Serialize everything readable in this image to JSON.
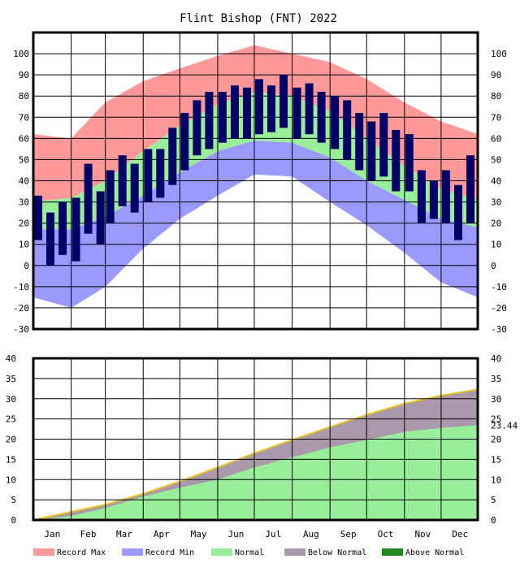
{
  "chart_data": [
    {
      "type": "area",
      "title": "Flint Bishop (FNT) 2022",
      "panel": "temperature",
      "ylim": [
        -30,
        110
      ],
      "yticks": [
        "100",
        "90",
        "80",
        "70",
        "60",
        "50",
        "40",
        "30",
        "20",
        "10",
        "0",
        "-10",
        "-20",
        "-30"
      ],
      "categories": [
        "Jan",
        "Feb",
        "Mar",
        "Apr",
        "May",
        "Jun",
        "Jul",
        "Aug",
        "Sep",
        "Oct",
        "Nov",
        "Dec"
      ],
      "grid": true,
      "series": [
        {
          "name": "Record Max",
          "color": "#ff9999",
          "x": [
            "Jan 1",
            "Feb 1",
            "Mar 1",
            "Apr 1",
            "May 1",
            "Jun 1",
            "Jul 1",
            "Aug 1",
            "Sep 1",
            "Oct 1",
            "Nov 1",
            "Dec 1",
            "Dec 31"
          ],
          "values": [
            62,
            60,
            77,
            87,
            93,
            99,
            104,
            100,
            96,
            88,
            77,
            68,
            62
          ]
        },
        {
          "name": "Record Min",
          "color": "#9999ff",
          "x": [
            "Jan 1",
            "Feb 1",
            "Mar 1",
            "Apr 1",
            "May 1",
            "Jun 1",
            "Jul 1",
            "Aug 1",
            "Sep 1",
            "Oct 1",
            "Nov 1",
            "Dec 1",
            "Dec 31"
          ],
          "values": [
            -15,
            -20,
            -10,
            8,
            22,
            33,
            43,
            42,
            30,
            19,
            6,
            -8,
            -15
          ]
        },
        {
          "name": "Normal",
          "color": "#99ee99",
          "x": [
            "Jan 1",
            "Feb 1",
            "Mar 1",
            "Apr 1",
            "May 1",
            "Jun 1",
            "Jul 1",
            "Aug 1",
            "Sep 1",
            "Oct 1",
            "Nov 1",
            "Dec 1",
            "Dec 31"
          ],
          "high": [
            30,
            32,
            40,
            54,
            66,
            76,
            82,
            80,
            73,
            60,
            47,
            36,
            31
          ],
          "low": [
            17,
            17,
            23,
            33,
            44,
            54,
            59,
            58,
            51,
            40,
            31,
            22,
            18
          ]
        },
        {
          "name": "Observed",
          "color": "#000066",
          "x": [
            "Jan 5",
            "Jan 15",
            "Jan 25",
            "Feb 5",
            "Feb 15",
            "Feb 25",
            "Mar 5",
            "Mar 15",
            "Mar 25",
            "Apr 5",
            "Apr 15",
            "Apr 25",
            "May 5",
            "May 15",
            "May 25",
            "Jun 5",
            "Jun 15",
            "Jun 25",
            "Jul 5",
            "Jul 15",
            "Jul 25",
            "Aug 5",
            "Aug 15",
            "Aug 25",
            "Sep 5",
            "Sep 15",
            "Sep 25",
            "Oct 5",
            "Oct 15",
            "Oct 25",
            "Nov 5",
            "Nov 15",
            "Nov 25",
            "Dec 5",
            "Dec 15",
            "Dec 25"
          ],
          "high": [
            33,
            25,
            30,
            32,
            48,
            35,
            45,
            52,
            48,
            55,
            55,
            65,
            72,
            78,
            82,
            82,
            85,
            84,
            88,
            85,
            90,
            84,
            86,
            82,
            80,
            78,
            72,
            68,
            72,
            64,
            62,
            45,
            40,
            45,
            38,
            52
          ],
          "low": [
            12,
            0,
            5,
            2,
            15,
            10,
            20,
            28,
            25,
            30,
            32,
            38,
            45,
            52,
            55,
            58,
            60,
            60,
            62,
            63,
            65,
            60,
            62,
            58,
            55,
            50,
            45,
            40,
            42,
            35,
            35,
            20,
            22,
            20,
            12,
            20
          ]
        }
      ]
    },
    {
      "type": "area",
      "panel": "precipitation",
      "ylim": [
        0,
        40
      ],
      "yticks": [
        "40",
        "35",
        "30",
        "25",
        "20",
        "15",
        "10",
        "5",
        "0"
      ],
      "categories": [
        "Jan",
        "Feb",
        "Mar",
        "Apr",
        "May",
        "Jun",
        "Jul",
        "Aug",
        "Sep",
        "Oct",
        "Nov",
        "Dec"
      ],
      "grid": true,
      "end_value_label": "23.44",
      "series": [
        {
          "name": "Normal",
          "color": "#f0e68c",
          "x": [
            "Jan 1",
            "Feb 1",
            "Mar 1",
            "Apr 1",
            "May 1",
            "Jun 1",
            "Jul 1",
            "Aug 1",
            "Sep 1",
            "Oct 1",
            "Nov 1",
            "Dec 1",
            "Dec 31"
          ],
          "values": [
            0,
            2.0,
            3.8,
            6.5,
            9.5,
            13.0,
            16.5,
            19.8,
            23.0,
            26.0,
            28.8,
            30.8,
            32.3
          ]
        },
        {
          "name": "Observed",
          "color": "#99ee99",
          "x": [
            "Jan 1",
            "Feb 1",
            "Mar 1",
            "Apr 1",
            "May 1",
            "Jun 1",
            "Jul 1",
            "Aug 1",
            "Sep 1",
            "Oct 1",
            "Nov 1",
            "Dec 1",
            "Dec 31"
          ],
          "values": [
            0,
            1.0,
            3.0,
            5.8,
            8.0,
            10.0,
            13.0,
            15.5,
            18.0,
            19.8,
            21.8,
            22.8,
            23.44
          ]
        }
      ]
    }
  ],
  "legend": [
    {
      "label": "Record Max",
      "color": "#ff9999"
    },
    {
      "label": "Record Min",
      "color": "#9999ff"
    },
    {
      "label": "Normal",
      "color": "#99ee99"
    },
    {
      "label": "Below Normal",
      "color": "#aa99aa"
    },
    {
      "label": "Above Normal",
      "color": "#228822"
    }
  ]
}
